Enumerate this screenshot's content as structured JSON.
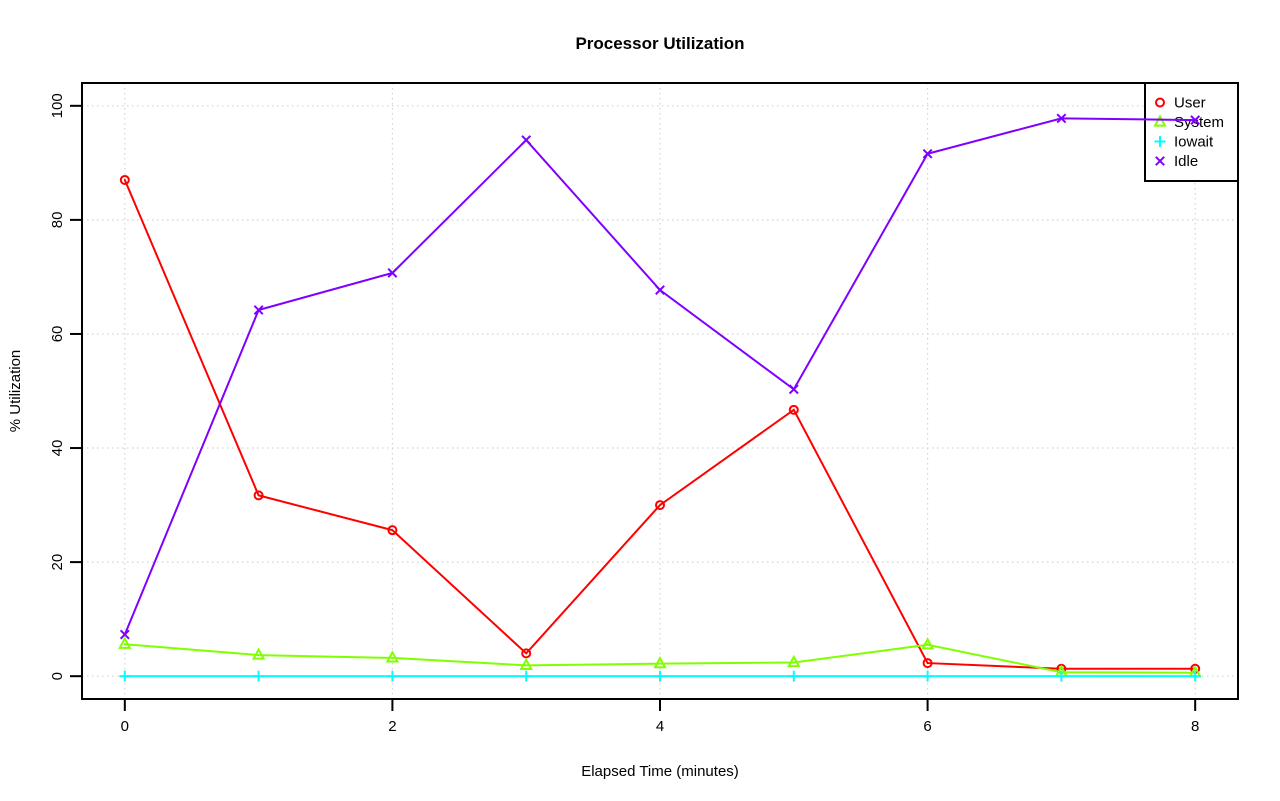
{
  "page": {
    "background": "#FFFFFF"
  },
  "chart_data": {
    "type": "line",
    "title": "Processor Utilization",
    "xlabel": "Elapsed Time (minutes)",
    "ylabel": "% Utilization",
    "x": [
      0,
      1,
      2,
      3,
      4,
      5,
      6,
      7,
      8
    ],
    "xlim": [
      0,
      8
    ],
    "ylim": [
      0,
      100
    ],
    "x_ticks": [
      0,
      2,
      4,
      6,
      8
    ],
    "y_ticks": [
      0,
      20,
      40,
      60,
      80,
      100
    ],
    "grid": "dotted",
    "grid_color": "#D3D3D3",
    "axis_color": "#000000",
    "background_color": "#FFFFFF",
    "legend_position": "topright",
    "series": [
      {
        "name": "User",
        "color": "#FF0000",
        "marker": "circle",
        "values": [
          87.0,
          31.7,
          25.6,
          4.0,
          30.0,
          46.7,
          2.3,
          1.3,
          1.3
        ]
      },
      {
        "name": "System",
        "color": "#80FF00",
        "marker": "triangle",
        "values": [
          5.6,
          3.7,
          3.2,
          1.9,
          2.2,
          2.4,
          5.5,
          0.7,
          0.6
        ]
      },
      {
        "name": "Iowait",
        "color": "#00FFFF",
        "marker": "plus",
        "values": [
          0,
          0,
          0,
          0,
          0,
          0,
          0,
          0,
          0
        ]
      },
      {
        "name": "Idle",
        "color": "#8000FF",
        "marker": "x",
        "values": [
          7.3,
          64.2,
          70.7,
          94.0,
          67.7,
          50.3,
          91.6,
          97.8,
          97.5
        ]
      }
    ]
  }
}
